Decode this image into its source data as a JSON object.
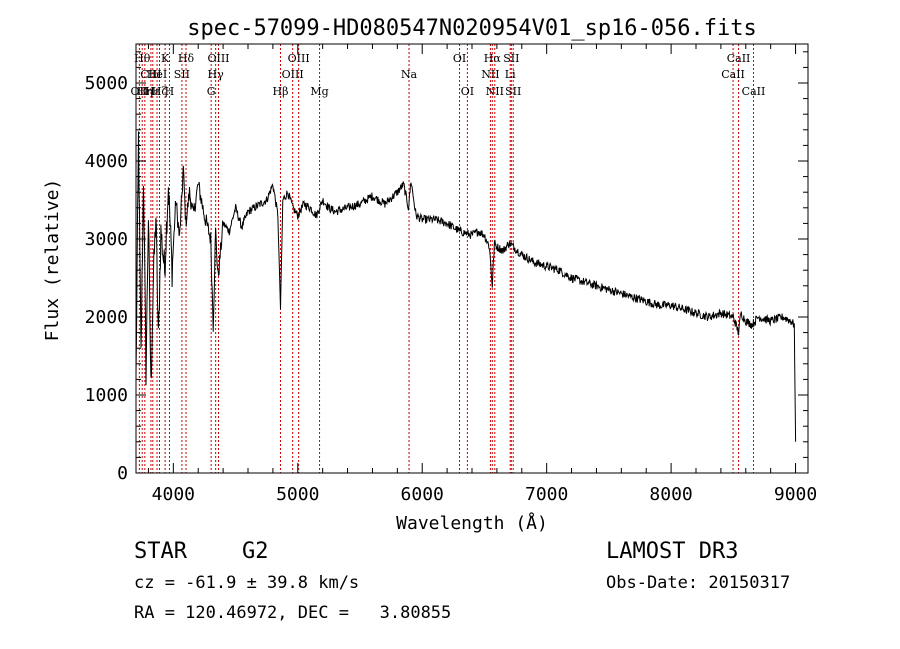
{
  "chart_data": {
    "type": "line",
    "title": "spec-57099-HD080547N020954V01_sp16-056.fits",
    "xlabel": "Wavelength (Å)",
    "ylabel": "Flux (relative)",
    "xlim": [
      3700,
      9100
    ],
    "ylim": [
      0,
      5500
    ],
    "x_ticks": [
      4000,
      5000,
      6000,
      7000,
      8000,
      9000
    ],
    "y_ticks": [
      0,
      1000,
      2000,
      3000,
      4000,
      5000
    ],
    "x_tick_labels": [
      "4000",
      "5000",
      "6000",
      "7000",
      "8000",
      "9000"
    ],
    "y_tick_labels": [
      "0",
      "1000",
      "2000",
      "3000",
      "4000",
      "5000"
    ],
    "series": [
      {
        "name": "flux",
        "x": [
          3700,
          3720,
          3740,
          3760,
          3780,
          3800,
          3820,
          3840,
          3860,
          3880,
          3900,
          3930,
          3960,
          3990,
          4020,
          4050,
          4080,
          4100,
          4130,
          4160,
          4200,
          4250,
          4300,
          4320,
          4340,
          4360,
          4400,
          4450,
          4500,
          4550,
          4600,
          4650,
          4700,
          4750,
          4800,
          4840,
          4861,
          4880,
          4920,
          4960,
          5000,
          5050,
          5100,
          5150,
          5200,
          5250,
          5300,
          5400,
          5500,
          5600,
          5700,
          5800,
          5850,
          5890,
          5910,
          5950,
          6000,
          6100,
          6200,
          6300,
          6400,
          6450,
          6500,
          6540,
          6563,
          6580,
          6600,
          6650,
          6700,
          6800,
          6900,
          7000,
          7100,
          7200,
          7300,
          7400,
          7500,
          7600,
          7700,
          7800,
          7900,
          8000,
          8100,
          8200,
          8300,
          8400,
          8500,
          8542,
          8560,
          8600,
          8650,
          8700,
          8800,
          8900,
          8960,
          8990,
          9000
        ],
        "y": [
          1200,
          4300,
          1500,
          3800,
          1300,
          3300,
          1100,
          2500,
          3300,
          1700,
          3100,
          2600,
          3700,
          2600,
          3500,
          3000,
          3900,
          3200,
          3600,
          3300,
          3700,
          3300,
          3000,
          1900,
          3100,
          2500,
          3200,
          3100,
          3400,
          3150,
          3350,
          3400,
          3450,
          3500,
          3700,
          3300,
          2100,
          3500,
          3600,
          3400,
          3300,
          3450,
          3400,
          3300,
          3500,
          3400,
          3350,
          3400,
          3450,
          3550,
          3450,
          3600,
          3700,
          3400,
          3750,
          3300,
          3250,
          3250,
          3200,
          3100,
          3050,
          3100,
          3050,
          2900,
          2400,
          2950,
          2900,
          2850,
          2950,
          2800,
          2700,
          2650,
          2600,
          2500,
          2450,
          2400,
          2350,
          2300,
          2250,
          2200,
          2150,
          2150,
          2100,
          2050,
          2000,
          2050,
          2000,
          1800,
          2050,
          1950,
          1900,
          2000,
          1950,
          2000,
          1950,
          1900,
          400
        ]
      }
    ],
    "lines": [
      {
        "wl": 3727,
        "label": "OII",
        "row": 3
      },
      {
        "wl": 3750,
        "label": "Hθ",
        "row": 1
      },
      {
        "wl": 3771,
        "label": "Hη",
        "row": 3
      },
      {
        "wl": 3820,
        "label": "CIII",
        "row": 2
      },
      {
        "wl": 3835,
        "label": "Hε",
        "row": 3
      },
      {
        "wl": 3869,
        "label": "HeI",
        "row": 2
      },
      {
        "wl": 3889,
        "label": "Hζ",
        "row": 3
      },
      {
        "wl": 3934,
        "label": "K",
        "row": 1
      },
      {
        "wl": 3969,
        "label": "H",
        "row": 3
      },
      {
        "wl": 4069,
        "label": "SII",
        "row": 2
      },
      {
        "wl": 4102,
        "label": "Hδ",
        "row": 1
      },
      {
        "wl": 4304,
        "label": "G",
        "row": 3
      },
      {
        "wl": 4340,
        "label": "Hγ",
        "row": 2
      },
      {
        "wl": 4363,
        "label": "OIII",
        "row": 1
      },
      {
        "wl": 4861,
        "label": "Hβ",
        "row": 3
      },
      {
        "wl": 4959,
        "label": "OIII",
        "row": 2
      },
      {
        "wl": 5007,
        "label": "OIII",
        "row": 1
      },
      {
        "wl": 5175,
        "label": "Mg",
        "row": 3
      },
      {
        "wl": 5894,
        "label": "Na",
        "row": 2
      },
      {
        "wl": 6300,
        "label": "OI",
        "row": 1
      },
      {
        "wl": 6363,
        "label": "OI",
        "row": 3
      },
      {
        "wl": 6548,
        "label": "NII",
        "row": 2
      },
      {
        "wl": 6563,
        "label": "Hα",
        "row": 1
      },
      {
        "wl": 6583,
        "label": "NII",
        "row": 3
      },
      {
        "wl": 6707,
        "label": "Li",
        "row": 2
      },
      {
        "wl": 6716,
        "label": "SII",
        "row": 1
      },
      {
        "wl": 6731,
        "label": "SII",
        "row": 3
      },
      {
        "wl": 8498,
        "label": "CaII",
        "row": 2
      },
      {
        "wl": 8542,
        "label": "CaII",
        "row": 1
      },
      {
        "wl": 8662,
        "label": "CaII",
        "row": 3
      }
    ]
  },
  "info": {
    "object_class": "STAR",
    "subclass": "G2",
    "survey": "LAMOST DR3",
    "redshift": "cz = -61.9 ± 39.8 km/s",
    "obs_date": "Obs-Date: 20150317",
    "coords": "RA = 120.46972, DEC =   3.80855"
  }
}
